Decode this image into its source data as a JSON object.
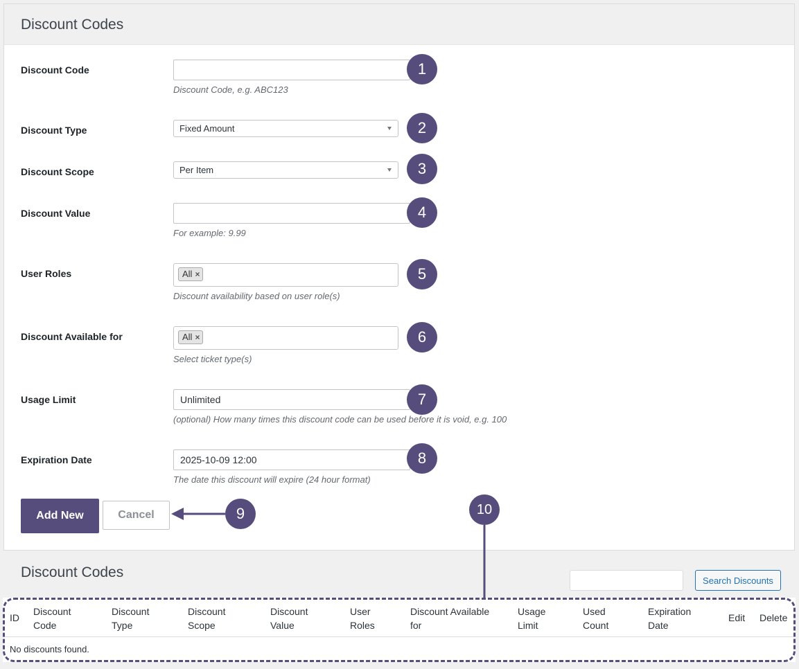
{
  "form_panel": {
    "title": "Discount Codes",
    "fields": {
      "code": {
        "label": "Discount Code",
        "value": "",
        "hint": "Discount Code, e.g. ABC123"
      },
      "type": {
        "label": "Discount Type",
        "selected": "Fixed Amount"
      },
      "scope": {
        "label": "Discount Scope",
        "selected": "Per Item"
      },
      "value": {
        "label": "Discount Value",
        "value": "",
        "hint": "For example: 9.99"
      },
      "user_roles": {
        "label": "User Roles",
        "tag": "All",
        "remove_glyph": "×",
        "hint": "Discount availability based on user role(s)"
      },
      "available_for": {
        "label": "Discount Available for",
        "tag": "All",
        "remove_glyph": "×",
        "hint": "Select ticket type(s)"
      },
      "usage_limit": {
        "label": "Usage Limit",
        "value": "Unlimited",
        "hint": "(optional) How many times this discount code can be used before it is void, e.g. 100"
      },
      "expiration": {
        "label": "Expiration Date",
        "value": "2025-10-09 12:00",
        "hint": "The date this discount will expire (24 hour format)"
      }
    },
    "buttons": {
      "add_new": "Add New",
      "cancel": "Cancel"
    }
  },
  "list_section": {
    "title": "Discount Codes",
    "search_value": "",
    "search_button": "Search Discounts",
    "columns": [
      [
        "ID"
      ],
      [
        "Discount",
        "Code"
      ],
      [
        "Discount",
        "Type"
      ],
      [
        "Discount",
        "Scope"
      ],
      [
        "Discount",
        "Value"
      ],
      [
        "User",
        "Roles"
      ],
      [
        "Discount Available",
        "for"
      ],
      [
        "Usage",
        "Limit"
      ],
      [
        "Used",
        "Count"
      ],
      [
        "Expiration",
        "Date"
      ],
      [
        "Edit"
      ],
      [
        "Delete"
      ]
    ],
    "empty_message": "No discounts found."
  },
  "callouts": [
    "1",
    "2",
    "3",
    "4",
    "5",
    "6",
    "7",
    "8",
    "9",
    "10"
  ],
  "colors": {
    "accent": "#564d7c",
    "link": "#2271b1"
  }
}
